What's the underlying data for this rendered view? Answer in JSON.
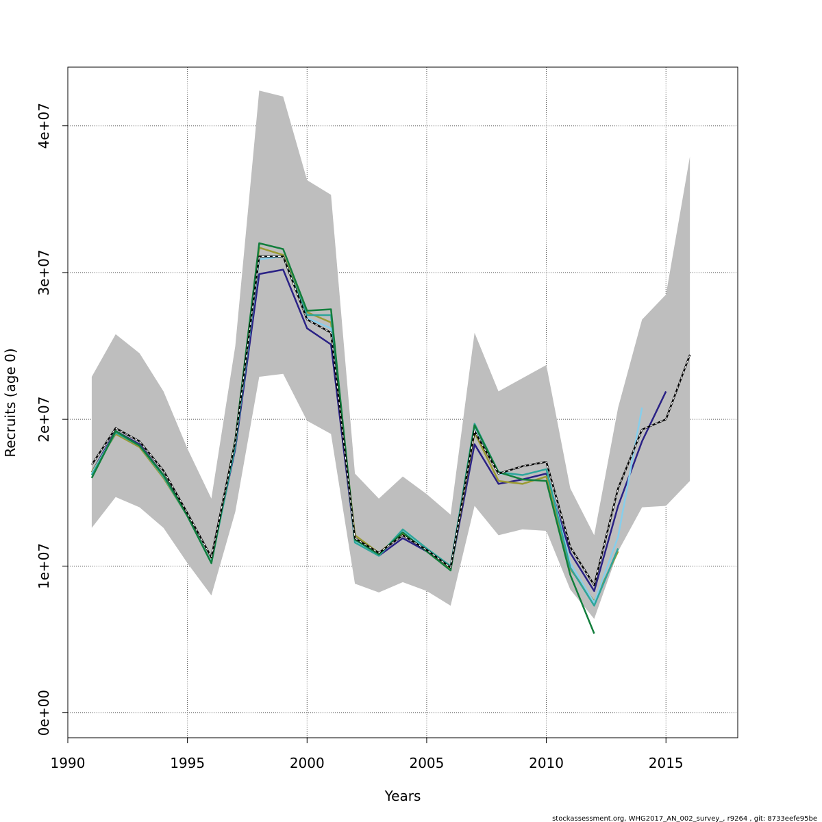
{
  "chart_data": {
    "type": "line",
    "title": "",
    "xlabel": "Years",
    "ylabel": "Recruits (age 0)",
    "xlim": [
      1990,
      2018
    ],
    "ylim": [
      -1700000,
      44000000
    ],
    "grid": true,
    "x_ticks": [
      1990,
      1995,
      2000,
      2005,
      2010,
      2015
    ],
    "x_tick_labels": [
      "1990",
      "1995",
      "2000",
      "2005",
      "2010",
      "2015"
    ],
    "y_ticks": [
      0,
      10000000,
      20000000,
      30000000,
      40000000
    ],
    "y_tick_labels": [
      "0e+00",
      "1e+07",
      "2e+07",
      "3e+07",
      "4e+07"
    ],
    "band": {
      "x": [
        1991,
        1992,
        1993,
        1994,
        1995,
        1996,
        1997,
        1998,
        1999,
        2000,
        2001,
        2002,
        2003,
        2004,
        2005,
        2006,
        2007,
        2008,
        2009,
        2010,
        2011,
        2012,
        2013,
        2014,
        2015,
        2016
      ],
      "upper": [
        22900000,
        25800000,
        24500000,
        21900000,
        18000000,
        14600000,
        25000000,
        42400000,
        42000000,
        36300000,
        35300000,
        16300000,
        14600000,
        16100000,
        14900000,
        13500000,
        25900000,
        21900000,
        22800000,
        23700000,
        15300000,
        12100000,
        20800000,
        26800000,
        28500000,
        37900000
      ],
      "lower": [
        12600000,
        14700000,
        14000000,
        12600000,
        10200000,
        8000000,
        13700000,
        22900000,
        23100000,
        19900000,
        19000000,
        8800000,
        8200000,
        8900000,
        8300000,
        7300000,
        14100000,
        12100000,
        12500000,
        12400000,
        8400000,
        6400000,
        11000000,
        14000000,
        14100000,
        15800000
      ],
      "color": "#bebebe"
    },
    "series": [
      {
        "color": "#000000",
        "dashed": true,
        "x": [
          1991,
          1992,
          1993,
          1994,
          1995,
          1996,
          1997,
          1998,
          1999,
          2000,
          2001,
          2002,
          2003,
          2004,
          2005,
          2006,
          2007,
          2008,
          2009,
          2010,
          2011,
          2012,
          2013,
          2014,
          2015,
          2016
        ],
        "values": [
          16900000,
          19400000,
          18500000,
          16500000,
          13600000,
          10600000,
          18500000,
          31100000,
          31100000,
          26800000,
          25900000,
          11900000,
          10900000,
          12100000,
          11100000,
          9900000,
          19200000,
          16300000,
          16800000,
          17100000,
          11300000,
          8700000,
          15300000,
          19300000,
          20000000,
          24400000
        ]
      },
      {
        "color": "#2a2185",
        "dashed": false,
        "x": [
          1991,
          1992,
          1993,
          1994,
          1995,
          1996,
          1997,
          1998,
          1999,
          2000,
          2001,
          2002,
          2003,
          2004,
          2005,
          2006,
          2007,
          2008,
          2009,
          2010,
          2011,
          2012,
          2013,
          2014,
          2015
        ],
        "values": [
          16400000,
          19200000,
          18300000,
          16200000,
          13500000,
          10400000,
          18000000,
          29900000,
          30200000,
          26200000,
          25100000,
          11700000,
          10700000,
          11900000,
          11000000,
          9800000,
          18300000,
          15600000,
          15900000,
          16300000,
          10900000,
          8300000,
          14100000,
          18500000,
          21900000
        ]
      },
      {
        "color": "#9a9a32",
        "dashed": false,
        "x": [
          1991,
          1992,
          1993,
          1994,
          1995,
          1996,
          1997,
          1998,
          1999,
          2000,
          2001,
          2002,
          2003,
          2004,
          2005,
          2006,
          2007,
          2008,
          2009,
          2010,
          2011,
          2012,
          2013
        ],
        "values": [
          16400000,
          19000000,
          18100000,
          16000000,
          13400000,
          10400000,
          18600000,
          31700000,
          31200000,
          27300000,
          26600000,
          12100000,
          10900000,
          12200000,
          11100000,
          9800000,
          19100000,
          15800000,
          15600000,
          16100000,
          9800000,
          7600000,
          11000000
        ]
      },
      {
        "color": "#87ceeb",
        "dashed": false,
        "x": [
          1991,
          1992,
          1993,
          1994,
          1995,
          1996,
          1997,
          1998,
          1999,
          2000,
          2001,
          2002,
          2003,
          2004,
          2005,
          2006,
          2007,
          2008,
          2009,
          2010,
          2011,
          2012,
          2013,
          2014
        ],
        "values": [
          16300000,
          19100000,
          18200000,
          16100000,
          13400000,
          10300000,
          18200000,
          30900000,
          31100000,
          26900000,
          26200000,
          11700000,
          10700000,
          12400000,
          11100000,
          9900000,
          19500000,
          16300000,
          16200000,
          16600000,
          10200000,
          7500000,
          12000000,
          20800000
        ]
      },
      {
        "color": "#2ea59a",
        "dashed": false,
        "x": [
          1991,
          1992,
          1993,
          1994,
          1995,
          1996,
          1997,
          1998,
          1999,
          2000,
          2001,
          2002,
          2003,
          2004,
          2005,
          2006,
          2007,
          2008,
          2009,
          2010,
          2011,
          2012,
          2013
        ],
        "values": [
          16200000,
          19100000,
          18200000,
          16100000,
          13400000,
          10200000,
          18200000,
          31100000,
          31100000,
          27100000,
          27100000,
          11600000,
          10700000,
          12500000,
          11200000,
          10000000,
          19700000,
          16400000,
          16200000,
          16600000,
          9900000,
          7300000,
          11200000
        ]
      },
      {
        "color": "#127e3c",
        "dashed": false,
        "x": [
          1991,
          1992,
          1993,
          1994,
          1995,
          1996,
          1997,
          1998,
          1999,
          2000,
          2001,
          2002,
          2003,
          2004,
          2005,
          2006,
          2007,
          2008,
          2009,
          2010,
          2011,
          2012
        ],
        "values": [
          16000000,
          19200000,
          18200000,
          16200000,
          13400000,
          10200000,
          18600000,
          32000000,
          31600000,
          27400000,
          27500000,
          11800000,
          10800000,
          12300000,
          11000000,
          9700000,
          19600000,
          16400000,
          15900000,
          15800000,
          9400000,
          5400000
        ]
      }
    ]
  },
  "footer": "stockassessment.org, WHG2017_AN_002_survey_, r9264 , git: 8733eefe95be"
}
